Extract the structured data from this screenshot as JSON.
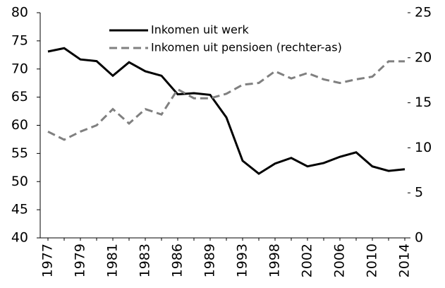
{
  "chart_data": {
    "type": "line",
    "categories": [
      "1977",
      null,
      "1979",
      null,
      "1981",
      null,
      "1983",
      null,
      "1986",
      null,
      "1989",
      null,
      "1993",
      null,
      "1998",
      null,
      "2002",
      null,
      "2006",
      null,
      "2010",
      null,
      "2014"
    ],
    "series": [
      {
        "name": "Inkomen uit werk",
        "color": "#000000",
        "dash": "solid",
        "values": [
          73.1,
          73.7,
          71.7,
          71.4,
          68.8,
          71.2,
          69.6,
          68.8,
          65.5,
          65.7,
          65.4,
          61.4,
          53.7,
          51.4,
          53.2,
          54.2,
          52.7,
          53.3,
          54.4,
          55.2,
          52.7,
          51.9,
          52.2
        ]
      },
      {
        "name": "Inkomen uit pensioen (rechter-as)",
        "color": "#808080",
        "dash": "dashed",
        "axis": "y2",
        "values": [
          11.8,
          10.9,
          11.8,
          12.5,
          14.3,
          12.7,
          14.3,
          13.7,
          16.5,
          15.5,
          15.5,
          16.0,
          17.0,
          17.2,
          18.5,
          17.7,
          18.3,
          17.6,
          17.2,
          17.6,
          17.9,
          19.6,
          19.6
        ]
      }
    ],
    "ylim": [
      40,
      80
    ],
    "yticks": [
      40,
      45,
      50,
      55,
      60,
      65,
      70,
      75,
      80
    ],
    "y2lim": [
      0,
      25
    ],
    "y2ticks": [
      0,
      5,
      10,
      15,
      20,
      25
    ],
    "legend": "top"
  }
}
